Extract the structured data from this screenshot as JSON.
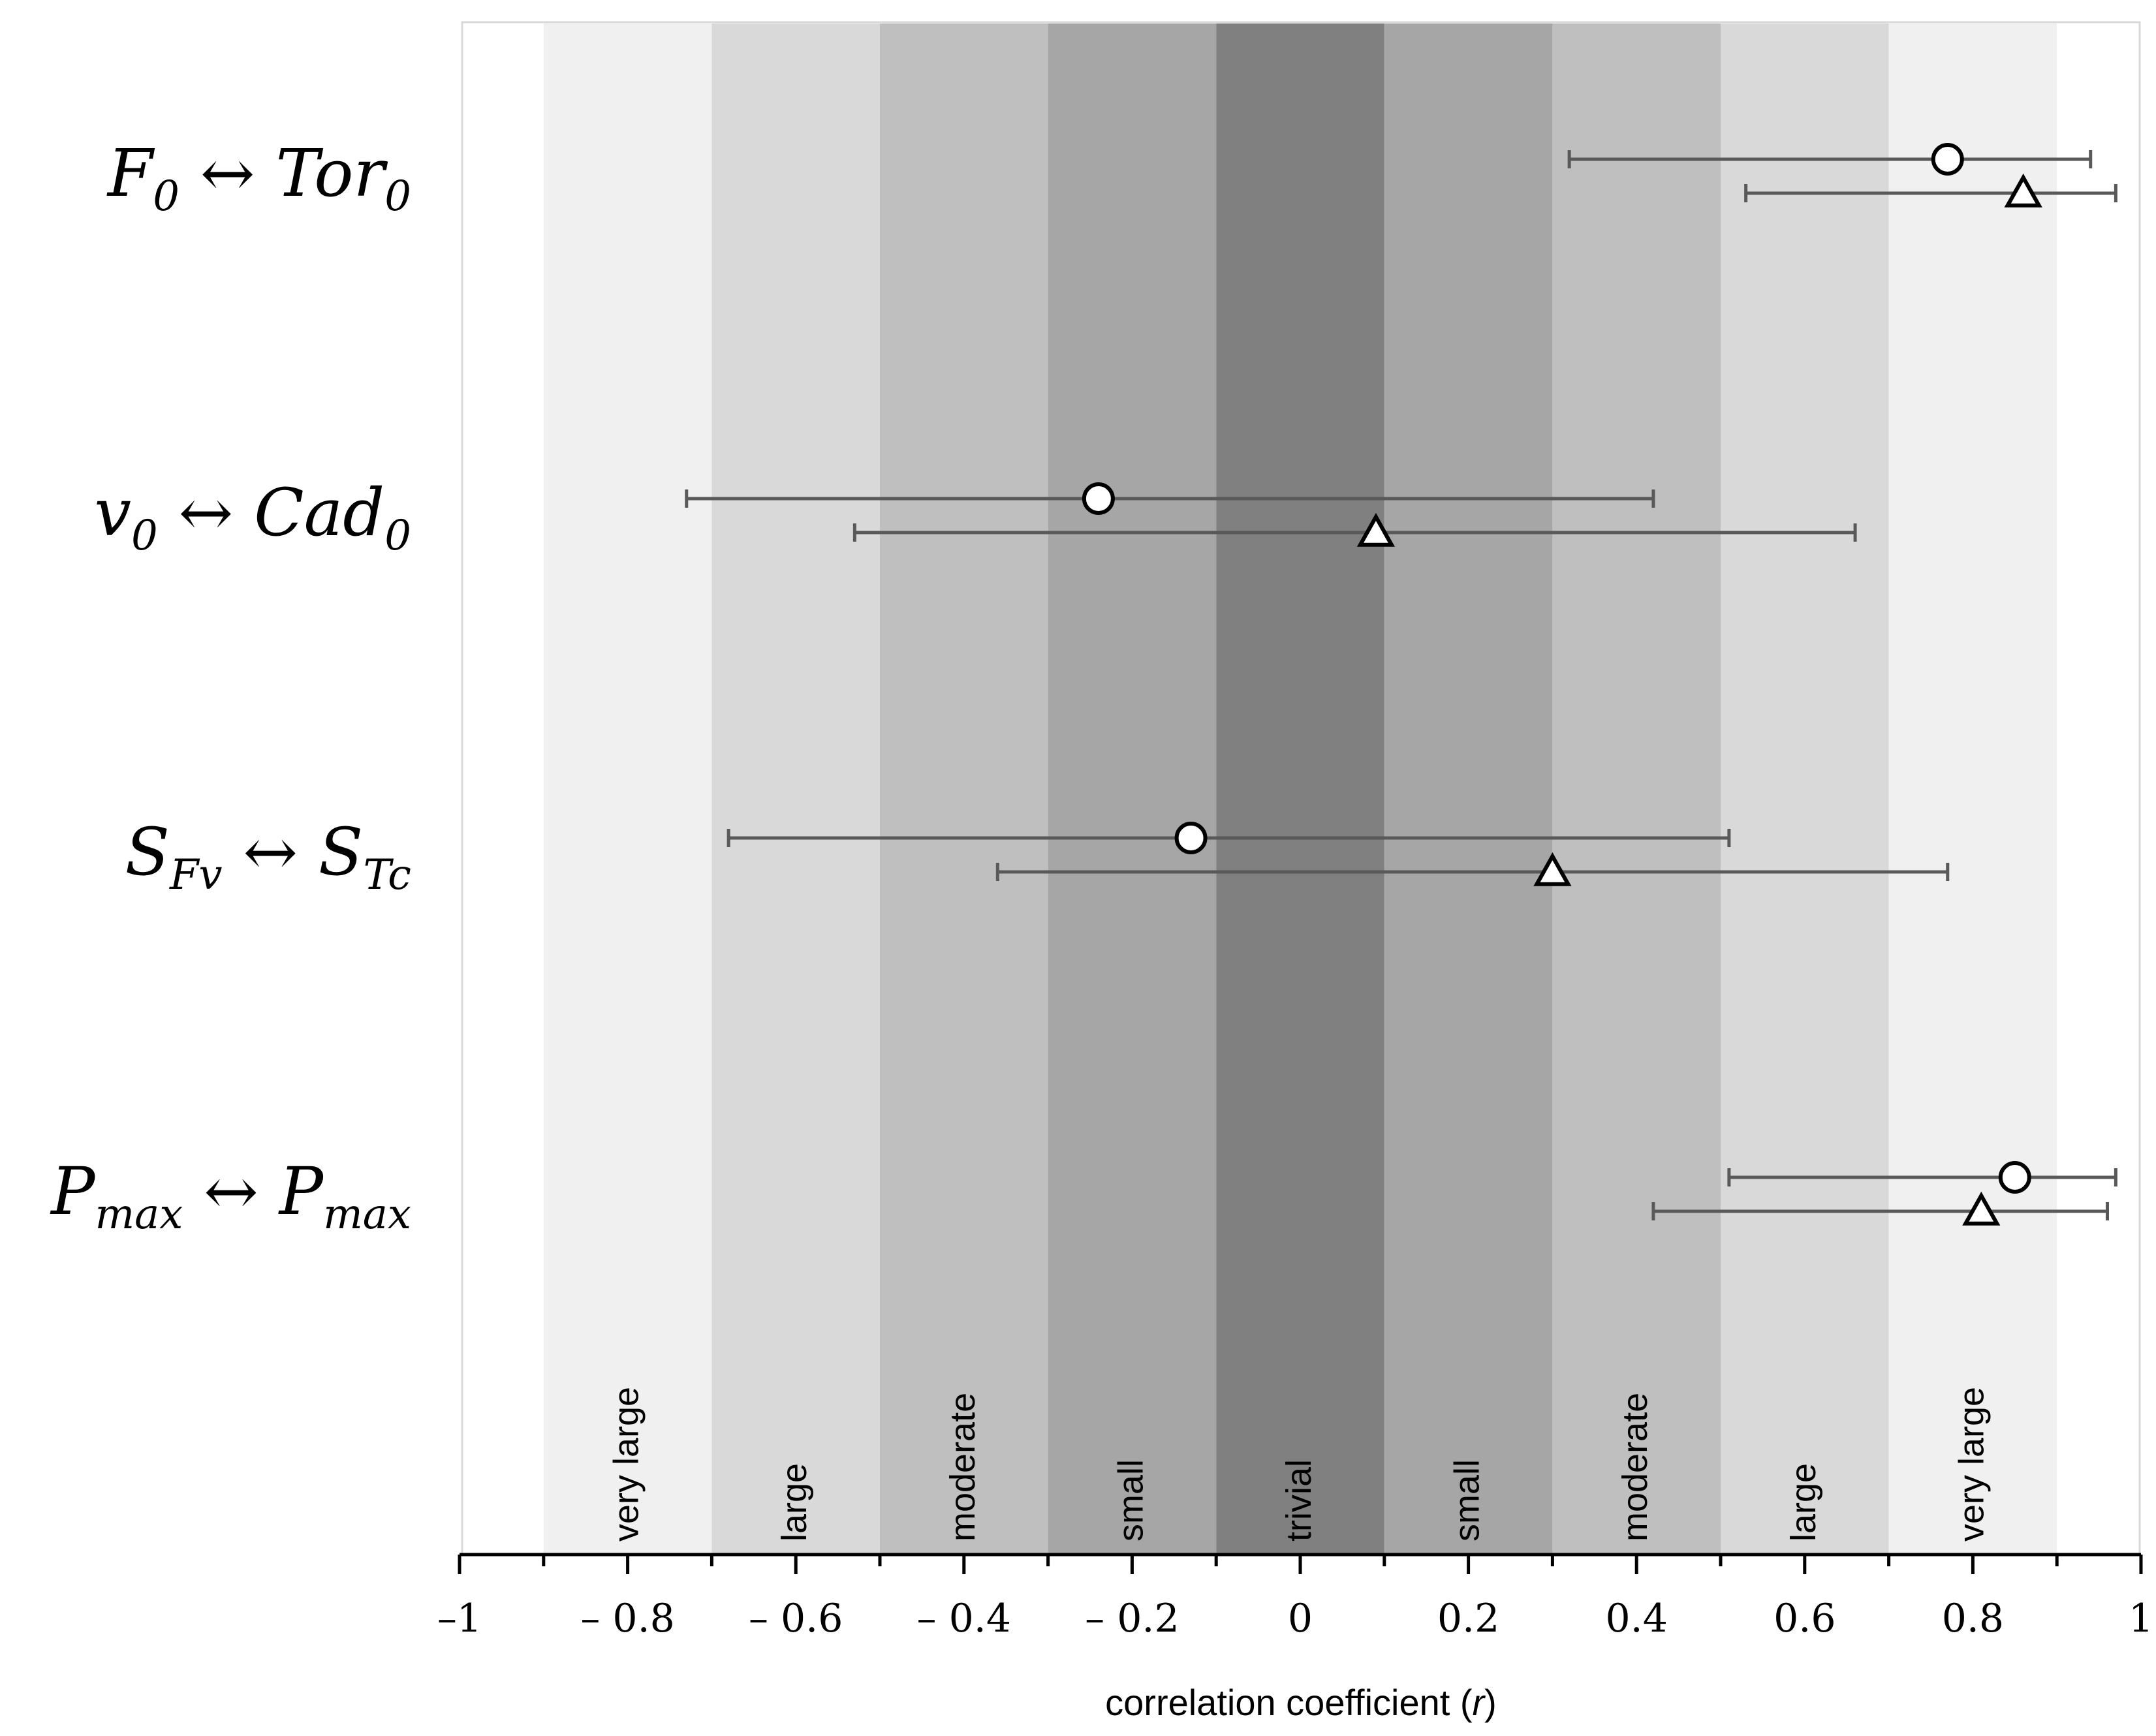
{
  "chart_data": {
    "type": "scatter",
    "title": "",
    "xlabel_prefix": "correlation coefficient (",
    "xlabel_var": "r",
    "xlabel_suffix": ")",
    "xlim": [
      -1,
      1
    ],
    "x_ticks": [
      {
        "value": -1,
        "label": "–1"
      },
      {
        "value": -0.8,
        "label": "– 0.8"
      },
      {
        "value": -0.6,
        "label": "– 0.6"
      },
      {
        "value": -0.4,
        "label": "– 0.4"
      },
      {
        "value": -0.2,
        "label": "– 0.2"
      },
      {
        "value": 0,
        "label": "0"
      },
      {
        "value": 0.2,
        "label": "0.2"
      },
      {
        "value": 0.4,
        "label": "0.4"
      },
      {
        "value": 0.6,
        "label": "0.6"
      },
      {
        "value": 0.8,
        "label": "0.8"
      },
      {
        "value": 1,
        "label": "1"
      }
    ],
    "minor_ticks": [
      -0.9,
      -0.7,
      -0.5,
      -0.3,
      -0.1,
      0.1,
      0.3,
      0.5,
      0.7,
      0.9
    ],
    "bands": [
      {
        "from": -0.9,
        "to": -0.7,
        "label": "very large",
        "color": "#f0f0f0"
      },
      {
        "from": -0.7,
        "to": -0.5,
        "label": "large",
        "color": "#d9d9d9"
      },
      {
        "from": -0.5,
        "to": -0.3,
        "label": "moderate",
        "color": "#bfbfbf"
      },
      {
        "from": -0.3,
        "to": -0.1,
        "label": "small",
        "color": "#a6a6a6"
      },
      {
        "from": -0.1,
        "to": 0.1,
        "label": "trivial",
        "color": "#808080"
      },
      {
        "from": 0.1,
        "to": 0.3,
        "label": "small",
        "color": "#a6a6a6"
      },
      {
        "from": 0.3,
        "to": 0.5,
        "label": "moderate",
        "color": "#bfbfbf"
      },
      {
        "from": 0.5,
        "to": 0.7,
        "label": "large",
        "color": "#d9d9d9"
      },
      {
        "from": 0.7,
        "to": 0.9,
        "label": "very large",
        "color": "#f0f0f0"
      }
    ],
    "rows": [
      {
        "label_left": {
          "base": "F",
          "sub": "0"
        },
        "arrow": "↔",
        "label_right": {
          "base": "Tor",
          "sub": "0"
        },
        "circle": {
          "r": 0.77,
          "ci": [
            0.32,
            0.94
          ]
        },
        "triangle": {
          "r": 0.86,
          "ci": [
            0.53,
            0.97
          ]
        }
      },
      {
        "label_left": {
          "base": "v",
          "sub": "0"
        },
        "arrow": "↔",
        "label_right": {
          "base": "Cad",
          "sub": "0"
        },
        "circle": {
          "r": -0.24,
          "ci": [
            -0.73,
            0.42
          ]
        },
        "triangle": {
          "r": 0.09,
          "ci": [
            -0.53,
            0.66
          ]
        }
      },
      {
        "label_left": {
          "base": "S",
          "sub": "Fv"
        },
        "arrow": "↔",
        "label_right": {
          "base": "S",
          "sub": "Tc"
        },
        "circle": {
          "r": -0.13,
          "ci": [
            -0.68,
            0.51
          ]
        },
        "triangle": {
          "r": 0.3,
          "ci": [
            -0.36,
            0.77
          ]
        }
      },
      {
        "label_left": {
          "base": "P",
          "sub": "max"
        },
        "arrow": "↔",
        "label_right": {
          "base": "P",
          "sub": "max"
        },
        "circle": {
          "r": 0.85,
          "ci": [
            0.51,
            0.97
          ]
        },
        "triangle": {
          "r": 0.81,
          "ci": [
            0.42,
            0.96
          ]
        }
      }
    ],
    "colors": {
      "axis": "#000000",
      "errorbar": "#595959",
      "marker_edge": "#000000",
      "marker_fill": "#ffffff",
      "frame": "#d9d9d9",
      "band_text": "#000000",
      "axis_title_text": "#595959"
    }
  }
}
